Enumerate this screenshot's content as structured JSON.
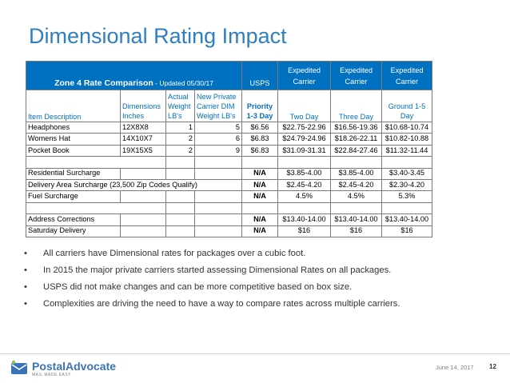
{
  "slide": {
    "title": "Dimensional Rating Impact"
  },
  "table": {
    "zone_title": "Zone 4 Rate Comparison",
    "zone_updated": " - Updated 05/30/17",
    "top_headers": {
      "usps": "USPS",
      "expedited1": "Expedited Carrier",
      "expedited2": "Expedited Carrier",
      "expedited3": "Expedited Carrier"
    },
    "sub_headers": {
      "item": "Item Description",
      "dimensions": "Dimensions Inches",
      "actual_weight": "Actual Weight LB's",
      "dim_weight": "New Private Carrier DIM Weight LB's",
      "priority": "Priority 1-3 Day",
      "two_day": "Two Day",
      "three_day": "Three Day",
      "ground": "Ground 1-5 Day"
    },
    "items": [
      {
        "name": "Headphones",
        "dims": "12X8X8",
        "actual": "1",
        "dim": "5",
        "usps": "$6.56",
        "two_day": "$22.75-22.96",
        "three_day": "$16.56-19.36",
        "ground": "$10.68-10.74"
      },
      {
        "name": "Womens Hat",
        "dims": "14X10X7",
        "actual": "2",
        "dim": "6",
        "usps": "$6.83",
        "two_day": "$24.79-24.96",
        "three_day": "$18.26-22.11",
        "ground": "$10.82-10.88"
      },
      {
        "name": "Pocket Book",
        "dims": "19X15X5",
        "actual": "2",
        "dim": "9",
        "usps": "$6.83",
        "two_day": "$31.09-31.31",
        "three_day": "$22.84-27.46",
        "ground": "$11.32-11.44"
      }
    ],
    "surcharges": [
      {
        "name": "Residential Surcharge",
        "usps": "N/A",
        "two_day": "$3.85-4.00",
        "three_day": "$3.85-4.00",
        "ground": "$3.40-3.45"
      },
      {
        "name": "Delivery Area Surcharge (23,500 Zip Codes Qualify)",
        "usps": "N/A",
        "two_day": "$2.45-4.20",
        "three_day": "$2.45-4.20",
        "ground": "$2.30-4.20"
      },
      {
        "name": "Fuel Surcharge",
        "usps": "N/A",
        "two_day": "4.5%",
        "three_day": "4.5%",
        "ground": "5.3%"
      }
    ],
    "other_fees": [
      {
        "name": "Address Corrections",
        "usps": "N/A",
        "two_day": "$13.40-14.00",
        "three_day": "$13.40-14.00",
        "ground": "$13.40-14.00"
      },
      {
        "name": "Saturday Delivery",
        "usps": "N/A",
        "two_day": "$16",
        "three_day": "$16",
        "ground": "$16"
      }
    ]
  },
  "bullets": [
    "All carriers have Dimensional rates for packages over a cubic foot.",
    "In 2015 the major private carriers started assessing Dimensional Rates on all packages.",
    "USPS did not make changes and can be more competitive based on box size.",
    "Complexities are driving the need to have a way to compare rates across multiple carriers."
  ],
  "footer": {
    "logo_name": "PostalAdvocate",
    "logo_sub": "MAIL MADE EASY",
    "date": "June 14, 2017",
    "page": "12"
  },
  "colors": {
    "title": "#2f7fc0",
    "header_fill": "#0070c0",
    "logo": "#3a74b8"
  }
}
